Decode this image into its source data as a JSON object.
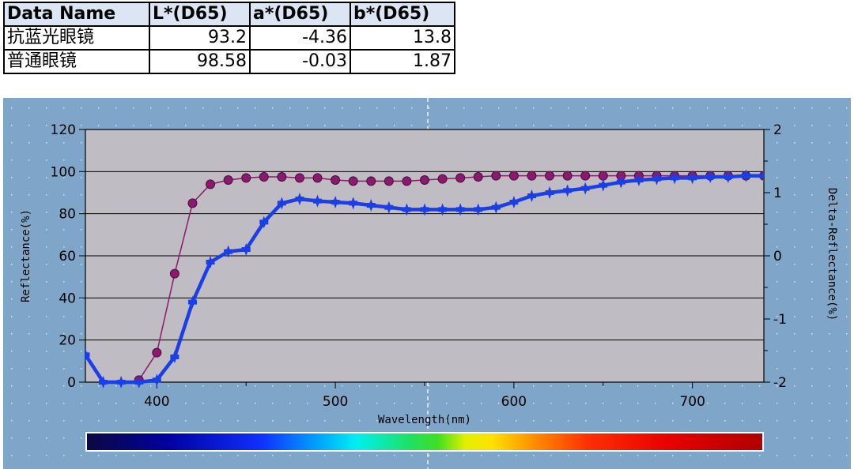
{
  "table": {
    "headers": [
      "Data Name",
      "L*(D65)",
      "a*(D65)",
      "b*(D65)"
    ],
    "rows": [
      [
        "抗蓝光眼镜",
        "93.2",
        "-4.36",
        "13.8"
      ],
      [
        "普通眼镜",
        "98.58",
        "-0.03",
        "1.87"
      ]
    ]
  },
  "colors": {
    "panel_bg": "#7fa5c9",
    "plot_bg": "#c0bcc3",
    "series_a": "#8b1a6e",
    "series_b": "#1a3ee8"
  },
  "chart_data": {
    "type": "line",
    "title": "",
    "xlabel": "Wavelength(nm)",
    "ylabel": "Reflectance(%)",
    "y2label": "Delta-Reflectance(%)",
    "xlim": [
      360,
      740
    ],
    "ylim": [
      0,
      120
    ],
    "y2lim": [
      -2,
      2
    ],
    "xticks": [
      400,
      500,
      600,
      700
    ],
    "yticks": [
      0,
      20,
      40,
      60,
      80,
      100,
      120
    ],
    "y2ticks": [
      -2,
      -1,
      0,
      1,
      2
    ],
    "grid": true,
    "series": [
      {
        "name": "",
        "color": "#8b1a6e",
        "x": [
          390,
          400,
          410,
          420,
          430,
          440,
          450,
          460,
          470,
          480,
          490,
          500,
          510,
          520,
          530,
          540,
          550,
          560,
          570,
          580,
          590,
          600,
          610,
          620,
          630,
          640,
          650,
          660,
          670,
          680,
          690,
          700,
          710,
          720,
          730,
          740
        ],
        "values": [
          1,
          14,
          51.5,
          85,
          94,
          96,
          97,
          97.5,
          97.5,
          97,
          97,
          96,
          95.5,
          95.5,
          95.5,
          95.5,
          96,
          96.5,
          97,
          97.5,
          98,
          98,
          98,
          98,
          98,
          98,
          98,
          98,
          98,
          98,
          98,
          98,
          98,
          98,
          98,
          98
        ]
      },
      {
        "name": "",
        "color": "#1a3ee8",
        "x": [
          360,
          370,
          380,
          390,
          400,
          410,
          420,
          430,
          440,
          450,
          460,
          470,
          480,
          490,
          500,
          510,
          520,
          530,
          540,
          550,
          560,
          570,
          580,
          590,
          600,
          610,
          620,
          630,
          640,
          650,
          660,
          670,
          680,
          690,
          700,
          710,
          720,
          730,
          740
        ],
        "values": [
          13,
          0,
          0,
          0,
          1,
          12,
          38,
          57,
          62,
          63,
          76,
          85,
          87,
          86,
          85.5,
          85,
          84,
          83,
          82,
          82,
          82,
          82,
          82,
          83,
          85.5,
          88.5,
          90,
          91,
          92,
          93.5,
          95,
          96,
          96.5,
          97,
          97,
          97.5,
          97.5,
          98,
          98
        ]
      }
    ]
  }
}
